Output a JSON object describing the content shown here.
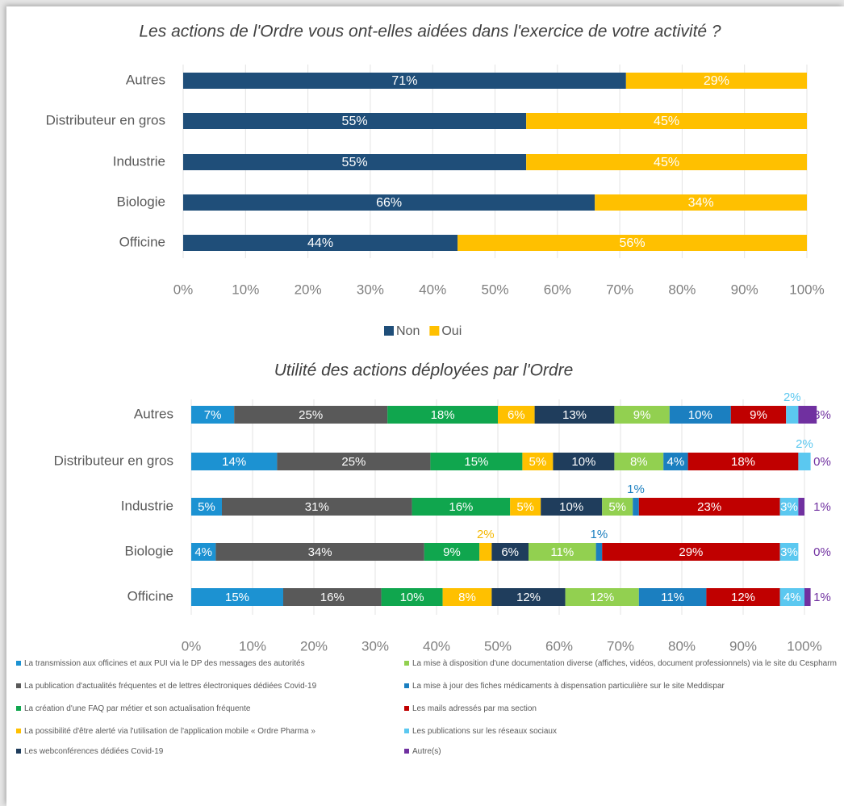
{
  "chart_data": [
    {
      "type": "bar",
      "orientation": "horizontal",
      "stacked": true,
      "title": "Les actions de l'Ordre vous ont-elles aidées dans l'exercice de votre activité ?",
      "categories": [
        "Autres",
        "Distributeur en gros",
        "Industrie",
        "Biologie",
        "Officine"
      ],
      "series": [
        {
          "name": "Non",
          "color": "#1f4e79",
          "values": [
            71,
            55,
            55,
            66,
            44
          ],
          "value_labels": [
            "71%",
            "55%",
            "55%",
            "66%",
            "44%"
          ]
        },
        {
          "name": "Oui",
          "color": "#ffc000",
          "values": [
            29,
            45,
            45,
            34,
            56
          ],
          "value_labels": [
            "29%",
            "45%",
            "45%",
            "34%",
            "56%"
          ]
        }
      ],
      "xlim": [
        0,
        100
      ],
      "xticks": [
        {
          "value": 0,
          "label": "0%"
        },
        {
          "value": 10,
          "label": "10%"
        },
        {
          "value": 20,
          "label": "20%"
        },
        {
          "value": 30,
          "label": "30%"
        },
        {
          "value": 40,
          "label": "40%"
        },
        {
          "value": 50,
          "label": "50%"
        },
        {
          "value": 60,
          "label": "60%"
        },
        {
          "value": 70,
          "label": "70%"
        },
        {
          "value": 80,
          "label": "80%"
        },
        {
          "value": 90,
          "label": "90%"
        },
        {
          "value": 100,
          "label": "100%"
        }
      ],
      "grid": true,
      "legend": "bottom"
    },
    {
      "type": "bar",
      "orientation": "horizontal",
      "stacked": true,
      "title": "Utilité des actions déployées par l'Ordre",
      "categories": [
        "Autres",
        "Distributeur en gros",
        "Industrie",
        "Biologie",
        "Officine"
      ],
      "series": [
        {
          "name": "La transmission aux officines et aux PUI via le DP des messages des autorités",
          "color": "#1c92d2",
          "values": [
            7,
            14,
            5,
            4,
            15
          ],
          "value_labels": [
            "7%",
            "14%",
            "5%",
            "4%",
            "15%"
          ]
        },
        {
          "name": "La publication d'actualités fréquentes et de lettres électroniques dédiées Covid-19",
          "color": "#595959",
          "values": [
            25,
            25,
            31,
            34,
            16
          ],
          "value_labels": [
            "25%",
            "25%",
            "31%",
            "34%",
            "16%"
          ]
        },
        {
          "name": "La création d'une FAQ par métier et son actualisation fréquente",
          "color": "#10a64e",
          "values": [
            18,
            15,
            16,
            9,
            10
          ],
          "value_labels": [
            "18%",
            "15%",
            "16%",
            "9%",
            "10%"
          ]
        },
        {
          "name": "La possibilité d'être alerté via l'utilisation de l'application mobile « Ordre Pharma »",
          "color": "#ffc000",
          "values": [
            6,
            5,
            5,
            2,
            8
          ],
          "value_labels": [
            "6%",
            "5%",
            "5%",
            "2%",
            "8%"
          ]
        },
        {
          "name": "Les webconférences dédiées Covid-19",
          "color": "#1f3d5c",
          "values": [
            13,
            10,
            10,
            6,
            12
          ],
          "value_labels": [
            "13%",
            "10%",
            "10%",
            "6%",
            "12%"
          ]
        },
        {
          "name": "La mise à disposition d'une documentation diverse (affiches, vidéos, document professionnels) via le site du Cespharm",
          "color": "#92d050",
          "values": [
            9,
            8,
            5,
            11,
            12
          ],
          "value_labels": [
            "9%",
            "8%",
            "5%",
            "11%",
            "12%"
          ]
        },
        {
          "name": "La mise à jour des fiches médicaments à dispensation particulière sur le site Meddispar",
          "color": "#1b7fc0",
          "values": [
            10,
            4,
            1,
            1,
            11
          ],
          "value_labels": [
            "10%",
            "4%",
            "1%",
            "1%",
            "11%"
          ]
        },
        {
          "name": "Les mails adressés par ma section",
          "color": "#c00000",
          "values": [
            9,
            18,
            23,
            29,
            12
          ],
          "value_labels": [
            "9%",
            "18%",
            "23%",
            "29%",
            "12%"
          ]
        },
        {
          "name": "Les publications sur les réseaux sociaux",
          "color": "#5bc8f0",
          "values": [
            2,
            2,
            3,
            3,
            4
          ],
          "value_labels": [
            "2%",
            "2%",
            "3%",
            "3%",
            "4%"
          ]
        },
        {
          "name": "Autre(s)",
          "color": "#7030a0",
          "values": [
            3,
            0,
            1,
            0,
            1
          ],
          "value_labels": [
            "3%",
            "0%",
            "1%",
            "0%",
            "1%"
          ]
        }
      ],
      "xlim": [
        0,
        100
      ],
      "xticks": [
        {
          "value": 0,
          "label": "0%"
        },
        {
          "value": 10,
          "label": "10%"
        },
        {
          "value": 20,
          "label": "20%"
        },
        {
          "value": 30,
          "label": "30%"
        },
        {
          "value": 40,
          "label": "40%"
        },
        {
          "value": 50,
          "label": "50%"
        },
        {
          "value": 60,
          "label": "60%"
        },
        {
          "value": 70,
          "label": "70%"
        },
        {
          "value": 80,
          "label": "80%"
        },
        {
          "value": 90,
          "label": "90%"
        },
        {
          "value": 100,
          "label": "100%"
        }
      ],
      "grid": true,
      "legend": "bottom"
    }
  ]
}
